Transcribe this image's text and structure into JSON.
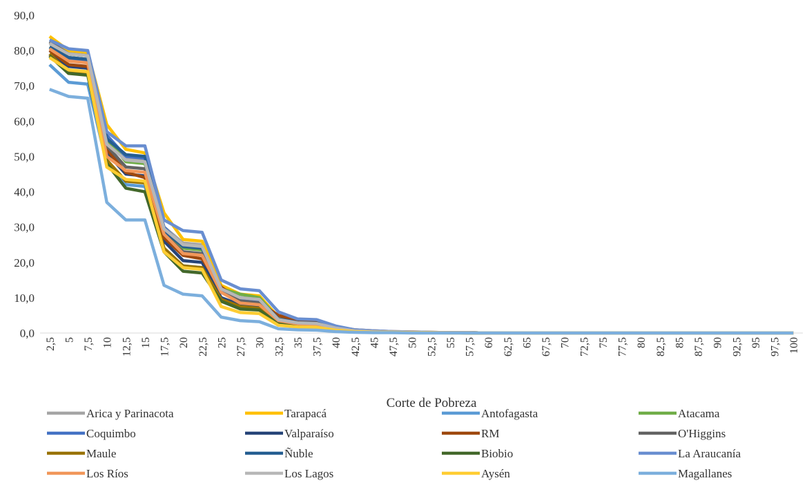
{
  "chart_data": {
    "type": "line",
    "title": "",
    "xlabel": "Corte de Pobreza",
    "ylabel": "",
    "ylim": [
      0,
      90
    ],
    "yticks": [
      "0,0",
      "10,0",
      "20,0",
      "30,0",
      "40,0",
      "50,0",
      "60,0",
      "70,0",
      "80,0",
      "90,0"
    ],
    "grid": false,
    "legend_position": "bottom",
    "x": [
      "2,5",
      "5",
      "7,5",
      "10",
      "12,5",
      "15",
      "17,5",
      "20",
      "22,5",
      "25",
      "27,5",
      "30",
      "32,5",
      "35",
      "37,5",
      "40",
      "42,5",
      "45",
      "47,5",
      "50",
      "52,5",
      "55",
      "57,5",
      "60",
      "62,5",
      "65",
      "67,5",
      "70",
      "72,5",
      "75",
      "77,5",
      "80",
      "82,5",
      "85",
      "87,5",
      "90",
      "92,5",
      "95",
      "97,5",
      "100"
    ],
    "series": [
      {
        "name": "Arica y Parinacota",
        "color": "#a5a5a5",
        "values": [
          82.0,
          79.5,
          79.0,
          54.0,
          49.5,
          49.0,
          30.0,
          25.5,
          25.0,
          13.0,
          10.0,
          9.5,
          4.0,
          3.0,
          2.8,
          1.5,
          0.7,
          0.4,
          0.3,
          0.2,
          0.1,
          0.1,
          0.1,
          0,
          0,
          0,
          0,
          0,
          0,
          0,
          0,
          0,
          0,
          0,
          0,
          0,
          0,
          0,
          0,
          0
        ]
      },
      {
        "name": "Tarapacá",
        "color": "#ffc000",
        "values": [
          84.0,
          80.0,
          79.5,
          59.0,
          52.0,
          51.0,
          34.0,
          26.5,
          26.0,
          13.5,
          11.0,
          10.5,
          4.5,
          3.5,
          3.2,
          1.8,
          0.8,
          0.5,
          0.3,
          0.2,
          0.1,
          0.1,
          0.1,
          0,
          0,
          0,
          0,
          0,
          0,
          0,
          0,
          0,
          0,
          0,
          0,
          0,
          0,
          0,
          0,
          0
        ]
      },
      {
        "name": "Antofagasta",
        "color": "#5b9bd5",
        "values": [
          76.0,
          71.0,
          70.5,
          48.0,
          42.0,
          41.5,
          24.0,
          19.0,
          18.5,
          9.0,
          7.0,
          6.8,
          2.5,
          2.0,
          1.8,
          0.9,
          0.4,
          0.3,
          0.2,
          0.1,
          0.1,
          0.1,
          0,
          0,
          0,
          0,
          0,
          0,
          0,
          0,
          0,
          0,
          0,
          0,
          0,
          0,
          0,
          0,
          0,
          0
        ]
      },
      {
        "name": "Atacama",
        "color": "#70ad47",
        "values": [
          81.0,
          78.0,
          77.5,
          55.0,
          48.5,
          48.0,
          29.0,
          24.0,
          23.5,
          12.5,
          11.0,
          10.0,
          4.0,
          3.0,
          2.8,
          1.4,
          0.6,
          0.4,
          0.3,
          0.2,
          0.1,
          0.1,
          0.1,
          0,
          0,
          0,
          0,
          0,
          0,
          0,
          0,
          0,
          0,
          0,
          0,
          0,
          0,
          0,
          0,
          0
        ]
      },
      {
        "name": "Coquimbo",
        "color": "#4472c4",
        "values": [
          80.0,
          77.5,
          77.0,
          56.0,
          50.0,
          49.5,
          30.0,
          24.5,
          24.0,
          12.0,
          9.5,
          9.0,
          3.5,
          2.8,
          2.6,
          1.3,
          0.6,
          0.4,
          0.2,
          0.2,
          0.1,
          0.1,
          0.1,
          0,
          0,
          0,
          0,
          0,
          0,
          0,
          0,
          0,
          0,
          0,
          0,
          0,
          0,
          0,
          0,
          0
        ]
      },
      {
        "name": "Valparaíso",
        "color": "#264478",
        "values": [
          79.0,
          75.5,
          75.0,
          51.0,
          45.0,
          44.5,
          26.0,
          20.5,
          20.0,
          10.0,
          8.0,
          7.5,
          3.0,
          2.3,
          2.1,
          1.0,
          0.5,
          0.3,
          0.2,
          0.1,
          0.1,
          0.1,
          0,
          0,
          0,
          0,
          0,
          0,
          0,
          0,
          0,
          0,
          0,
          0,
          0,
          0,
          0,
          0,
          0,
          0
        ]
      },
      {
        "name": "RM",
        "color": "#9e480e",
        "values": [
          80.0,
          76.0,
          75.5,
          52.0,
          45.5,
          44.0,
          27.0,
          22.0,
          21.0,
          13.0,
          9.0,
          8.5,
          5.0,
          3.5,
          3.3,
          1.8,
          0.9,
          0.6,
          0.4,
          0.3,
          0.2,
          0.1,
          0.1,
          0,
          0,
          0,
          0,
          0,
          0,
          0,
          0,
          0,
          0,
          0,
          0,
          0,
          0,
          0,
          0,
          0
        ]
      },
      {
        "name": "O'Higgins",
        "color": "#636363",
        "values": [
          82.5,
          79.0,
          78.5,
          53.0,
          47.0,
          46.5,
          28.0,
          23.0,
          22.5,
          11.5,
          9.0,
          8.5,
          3.5,
          2.7,
          2.5,
          1.2,
          0.6,
          0.4,
          0.2,
          0.2,
          0.1,
          0.1,
          0.1,
          0,
          0,
          0,
          0,
          0,
          0,
          0,
          0,
          0,
          0,
          0,
          0,
          0,
          0,
          0,
          0,
          0
        ]
      },
      {
        "name": "Maule",
        "color": "#997300",
        "values": [
          79.0,
          74.0,
          73.5,
          49.0,
          43.0,
          42.5,
          24.0,
          19.0,
          18.5,
          9.5,
          7.5,
          7.0,
          2.8,
          2.1,
          2.0,
          0.9,
          0.4,
          0.3,
          0.2,
          0.1,
          0.1,
          0.1,
          0,
          0,
          0,
          0,
          0,
          0,
          0,
          0,
          0,
          0,
          0,
          0,
          0,
          0,
          0,
          0,
          0,
          0
        ]
      },
      {
        "name": "Ñuble",
        "color": "#255e91",
        "values": [
          81.0,
          78.0,
          77.5,
          55.0,
          50.5,
          50.0,
          29.0,
          24.5,
          24.0,
          12.5,
          10.0,
          9.5,
          4.0,
          3.0,
          2.8,
          1.4,
          0.6,
          0.4,
          0.3,
          0.2,
          0.1,
          0.1,
          0.1,
          0,
          0,
          0,
          0,
          0,
          0,
          0,
          0,
          0,
          0,
          0,
          0,
          0,
          0,
          0,
          0,
          0
        ]
      },
      {
        "name": "Biobio",
        "color": "#43682b",
        "values": [
          78.5,
          73.5,
          73.0,
          48.0,
          41.0,
          40.0,
          23.0,
          17.5,
          17.0,
          9.0,
          6.8,
          6.5,
          2.6,
          2.0,
          1.9,
          0.9,
          0.4,
          0.3,
          0.2,
          0.1,
          0.1,
          0.1,
          0,
          0,
          0,
          0,
          0,
          0,
          0,
          0,
          0,
          0,
          0,
          0,
          0,
          0,
          0,
          0,
          0,
          0
        ]
      },
      {
        "name": "La Araucanía",
        "color": "#698ed0",
        "values": [
          83.0,
          80.5,
          80.0,
          57.0,
          53.0,
          53.0,
          32.0,
          29.0,
          28.5,
          15.0,
          12.5,
          12.0,
          6.0,
          4.0,
          3.8,
          2.0,
          0.9,
          0.6,
          0.4,
          0.3,
          0.2,
          0.1,
          0.1,
          0,
          0,
          0,
          0,
          0,
          0,
          0,
          0,
          0,
          0,
          0,
          0,
          0,
          0,
          0,
          0,
          0
        ]
      },
      {
        "name": "Los Ríos",
        "color": "#f1975a",
        "values": [
          80.5,
          77.0,
          76.5,
          50.0,
          46.0,
          45.5,
          28.0,
          22.5,
          22.0,
          11.5,
          8.5,
          8.0,
          3.5,
          2.6,
          2.4,
          1.2,
          0.5,
          0.3,
          0.2,
          0.2,
          0.1,
          0.1,
          0.1,
          0,
          0,
          0,
          0,
          0,
          0,
          0,
          0,
          0,
          0,
          0,
          0,
          0,
          0,
          0,
          0,
          0
        ]
      },
      {
        "name": "Los Lagos",
        "color": "#b7b7b7",
        "values": [
          82.0,
          79.0,
          78.5,
          53.5,
          49.0,
          48.5,
          29.5,
          25.0,
          24.5,
          12.5,
          10.0,
          9.5,
          3.8,
          2.9,
          2.7,
          1.4,
          0.6,
          0.4,
          0.3,
          0.2,
          0.1,
          0.1,
          0.1,
          0,
          0,
          0,
          0,
          0,
          0,
          0,
          0,
          0,
          0,
          0,
          0,
          0,
          0,
          0,
          0,
          0
        ]
      },
      {
        "name": "Aysén",
        "color": "#ffcd33",
        "values": [
          78.0,
          74.5,
          74.0,
          47.0,
          43.5,
          43.0,
          23.0,
          18.5,
          18.0,
          7.5,
          5.8,
          5.5,
          2.2,
          1.7,
          1.6,
          0.8,
          0.4,
          0.2,
          0.2,
          0.1,
          0.1,
          0,
          0,
          0,
          0,
          0,
          0,
          0,
          0,
          0,
          0,
          0,
          0,
          0,
          0,
          0,
          0,
          0,
          0,
          0
        ]
      },
      {
        "name": "Magallanes",
        "color": "#7cafdd",
        "values": [
          69.0,
          67.0,
          66.5,
          37.0,
          32.0,
          32.0,
          13.5,
          11.0,
          10.5,
          4.5,
          3.5,
          3.2,
          1.2,
          0.9,
          0.8,
          0.4,
          0.2,
          0.1,
          0.1,
          0,
          0,
          0,
          0,
          0,
          0,
          0,
          0,
          0,
          0,
          0,
          0,
          0,
          0,
          0,
          0,
          0,
          0,
          0,
          0,
          0
        ]
      }
    ]
  }
}
